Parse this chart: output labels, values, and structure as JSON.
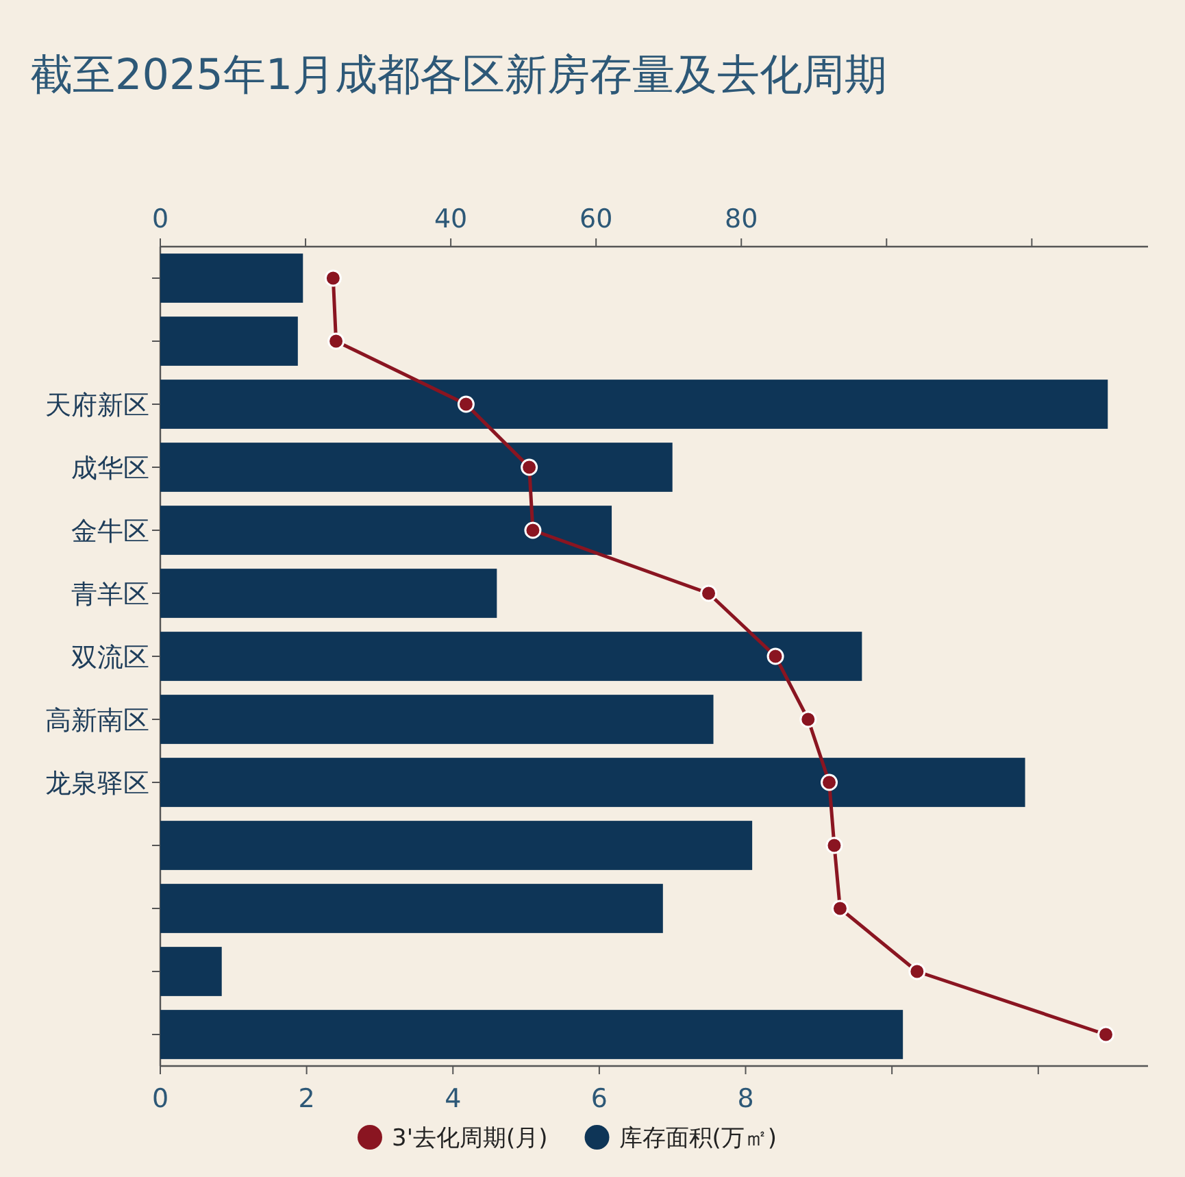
{
  "chart_data": {
    "type": "bar",
    "orientation": "horizontal",
    "title": "截至2025年1月成都各区新房存量及去化周期",
    "categories": [
      null,
      null,
      "天府新区",
      "成华区",
      "金牛区",
      "青羊区",
      "双流区",
      "高新南区",
      "龙泉驿区",
      null,
      null,
      null,
      null
    ],
    "series": [
      {
        "name": "库存面积(万㎡)",
        "color": "#0e3557",
        "values": [
          1.95,
          1.88,
          12.95,
          7.0,
          6.17,
          4.6,
          9.59,
          7.56,
          11.82,
          8.09,
          6.87,
          0.84,
          10.15
        ]
      },
      {
        "name": "3'去化周期(月)",
        "type": "line",
        "axis": "x2",
        "marker": "circle",
        "color": "#8a1521",
        "values": [
          23.8,
          24.2,
          42.1,
          50.8,
          51.3,
          75.5,
          84.7,
          89.2,
          92.1,
          92.8,
          93.6,
          104.2,
          130.2
        ]
      }
    ],
    "xlim": [
      0,
      13.5
    ],
    "xticks": [
      0,
      2,
      4,
      6,
      8,
      {
        "value": 10,
        "label": null
      },
      {
        "value": 12,
        "label": null
      }
    ],
    "x2lim": [
      0,
      136
    ],
    "x2ticks": [
      0,
      {
        "value": 20,
        "label": null
      },
      40,
      60,
      80,
      {
        "value": 100,
        "label": null
      },
      {
        "value": 120,
        "label": null
      }
    ],
    "legend": "bottom"
  }
}
